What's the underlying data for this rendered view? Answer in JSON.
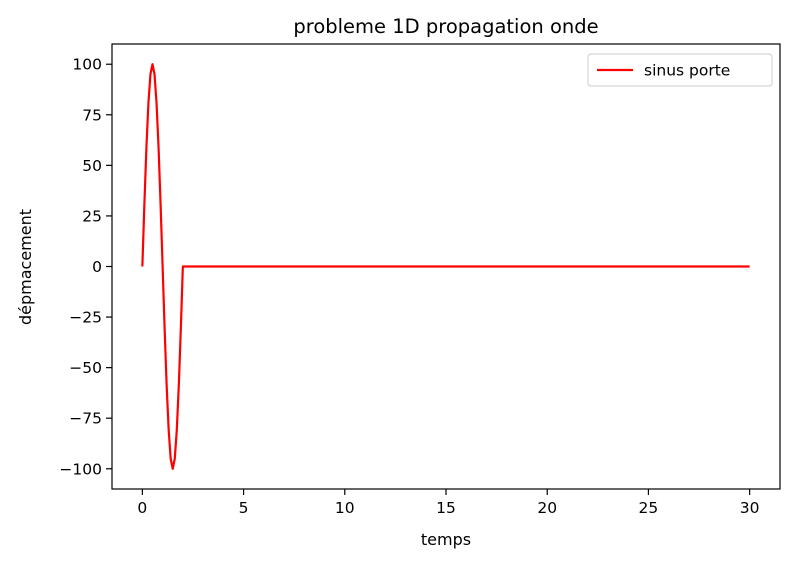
{
  "chart_data": {
    "type": "line",
    "title": "probleme 1D propagation onde",
    "xlabel": "temps",
    "ylabel": "dépmacement",
    "xlim": [
      -1.5,
      31.5
    ],
    "ylim": [
      -110,
      110
    ],
    "x_ticks": [
      0,
      5,
      10,
      15,
      20,
      25,
      30
    ],
    "y_ticks": [
      100,
      75,
      50,
      25,
      0,
      -25,
      -50,
      -75,
      -100
    ],
    "x_tick_labels": [
      "0",
      "5",
      "10",
      "15",
      "20",
      "25",
      "30"
    ],
    "y_tick_labels": [
      "100",
      "75",
      "50",
      "25",
      "0",
      "−25",
      "−50",
      "−75",
      "−100"
    ],
    "grid": false,
    "legend_position": "top-right",
    "series": [
      {
        "name": "sinus porte",
        "color": "#ff0000",
        "x": [
          0,
          0.1,
          0.2,
          0.3,
          0.4,
          0.5,
          0.6,
          0.7,
          0.8,
          0.9,
          1.0,
          1.1,
          1.2,
          1.3,
          1.4,
          1.5,
          1.6,
          1.7,
          1.8,
          1.9,
          2.0,
          2.01,
          5,
          10,
          15,
          20,
          25,
          30
        ],
        "y": [
          0,
          30.9,
          58.8,
          80.9,
          95.1,
          100,
          95.1,
          80.9,
          58.8,
          30.9,
          0,
          -30.9,
          -58.8,
          -80.9,
          -95.1,
          -100,
          -95.1,
          -80.9,
          -58.8,
          -30.9,
          0,
          0,
          0,
          0,
          0,
          0,
          0,
          0
        ]
      }
    ]
  }
}
